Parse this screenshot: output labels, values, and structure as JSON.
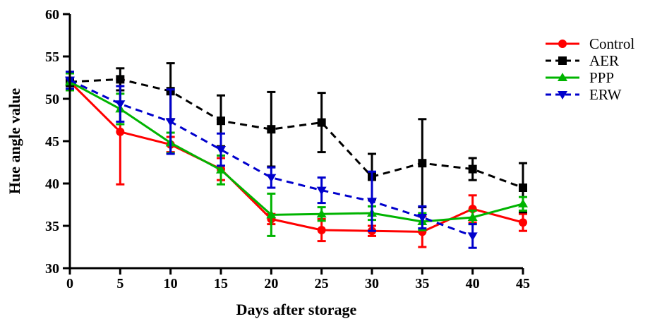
{
  "chart_data": {
    "type": "line",
    "title": "",
    "xlabel": "Days after storage",
    "ylabel": "Hue angle value",
    "xlim": [
      0,
      45
    ],
    "ylim": [
      30,
      60
    ],
    "xticks": [
      0,
      5,
      10,
      15,
      20,
      25,
      30,
      35,
      40,
      45
    ],
    "yticks": [
      30,
      35,
      40,
      45,
      50,
      55,
      60
    ],
    "grid": false,
    "legend_position": "right",
    "x": [
      0,
      5,
      10,
      15,
      20,
      25,
      30,
      35,
      40,
      45
    ],
    "series": [
      {
        "name": "Control",
        "color": "#ff0000",
        "marker": "circle",
        "dash": "solid",
        "values": [
          52.0,
          46.1,
          44.6,
          41.7,
          35.8,
          34.5,
          34.4,
          34.3,
          37.0,
          35.4
        ],
        "errors": [
          1.0,
          6.2,
          0.9,
          1.3,
          0.6,
          1.3,
          0.6,
          1.8,
          1.6,
          1.0
        ]
      },
      {
        "name": "AER",
        "color": "#000000",
        "marker": "square",
        "dash": "dashed",
        "values": [
          52.0,
          52.3,
          50.9,
          47.4,
          46.4,
          47.2,
          40.8,
          42.4,
          41.7,
          39.5
        ],
        "errors": [
          0.5,
          1.3,
          3.3,
          3.0,
          4.4,
          3.5,
          2.7,
          5.2,
          1.3,
          2.9
        ]
      },
      {
        "name": "PPP",
        "color": "#00b400",
        "marker": "triangle-up",
        "dash": "solid",
        "values": [
          52.0,
          48.8,
          44.8,
          41.6,
          36.3,
          36.4,
          36.5,
          35.5,
          36.0,
          37.6
        ],
        "errors": [
          1.0,
          1.8,
          1.2,
          1.7,
          2.5,
          0.8,
          0.8,
          1.0,
          0.8,
          0.8
        ]
      },
      {
        "name": "ERW",
        "color": "#0000cc",
        "marker": "triangle-down",
        "dash": "dashed",
        "values": [
          52.2,
          49.4,
          47.3,
          44.0,
          40.7,
          39.2,
          37.9,
          36.0,
          33.8,
          null
        ],
        "errors": [
          1.0,
          2.1,
          3.8,
          1.9,
          1.2,
          1.5,
          3.5,
          1.3,
          1.4,
          null
        ]
      }
    ]
  }
}
